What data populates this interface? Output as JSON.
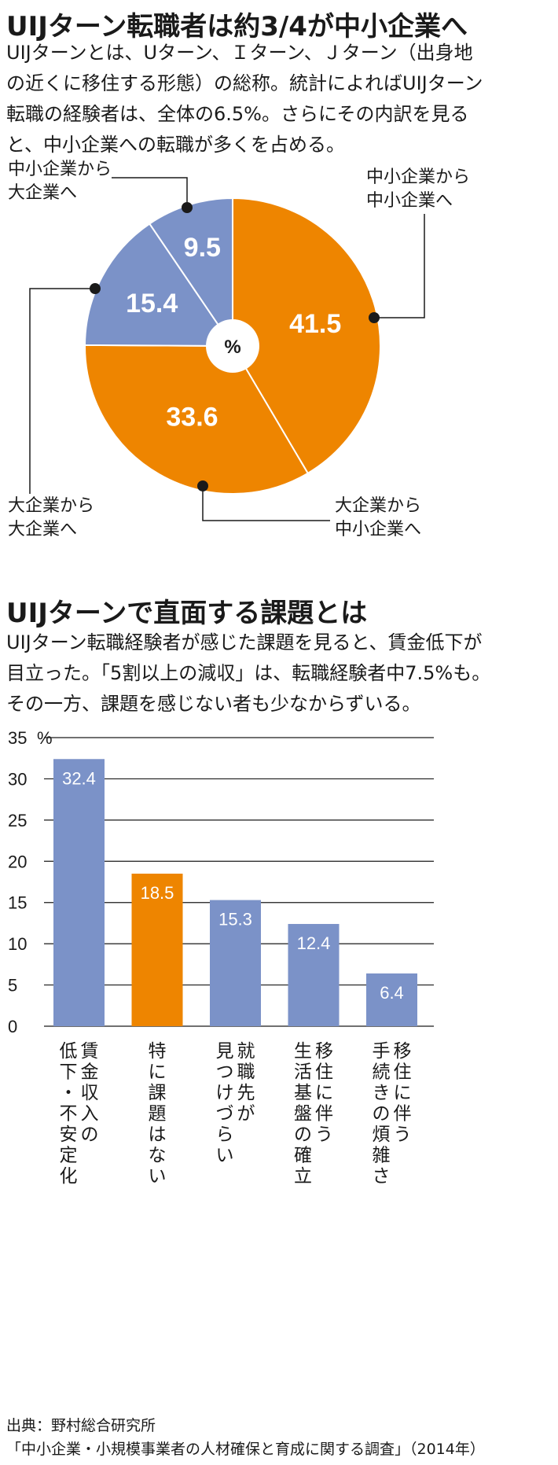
{
  "section1": {
    "title": "UIJターン転職者は約3/4が中小企業へ",
    "lead": [
      "UIJターンとは、Uターン、Ｉターン、Ｊターン（出身地",
      "の近くに移住する形態）の総称。統計によればUIJターン",
      "転職の経験者は、全体の6.5%。さらにその内訳を見る",
      "と、中小企業への転職が多くを占める。"
    ]
  },
  "section2": {
    "title": "UIJターンで直面する課題とは",
    "lead": [
      "UIJターン転職経験者が感じた課題を見ると、賃金低下が",
      "目立った。「5割以上の減収」は、転職経験者中7.5%も。",
      "その一方、課題を感じない者も少なからずいる。"
    ]
  },
  "chart_data": [
    {
      "type": "pie",
      "center_label": "%",
      "slices": [
        {
          "label_lines": [
            "中小企業から",
            "中小企業へ"
          ],
          "value": 41.5,
          "value_label": "41.5",
          "color": "#EE8500"
        },
        {
          "label_lines": [
            "大企業から",
            "中小企業へ"
          ],
          "value": 33.6,
          "value_label": "33.6",
          "color": "#EE8500"
        },
        {
          "label_lines": [
            "大企業から",
            "大企業へ"
          ],
          "value": 15.4,
          "value_label": "15.4",
          "color": "#7B92C8"
        },
        {
          "label_lines": [
            "中小企業から",
            "大企業へ"
          ],
          "value": 9.5,
          "value_label": "9.5",
          "color": "#7B92C8"
        }
      ]
    },
    {
      "type": "bar",
      "ylim": [
        0,
        35
      ],
      "yticks": [
        "0",
        "5",
        "10",
        "15",
        "20",
        "25",
        "30",
        "35"
      ],
      "yunit": "%",
      "grid": true,
      "bars": [
        {
          "category_lines": [
            "賃金収入の",
            "低下・不安定化"
          ],
          "value": 32.4,
          "value_label": "32.4",
          "color": "#7B92C8"
        },
        {
          "category_lines": [
            "特に課題はない"
          ],
          "value": 18.5,
          "value_label": "18.5",
          "color": "#EE8500"
        },
        {
          "category_lines": [
            "就職先が",
            "見つけづらい"
          ],
          "value": 15.3,
          "value_label": "15.3",
          "color": "#7B92C8"
        },
        {
          "category_lines": [
            "移住に伴う",
            "生活基盤の確立"
          ],
          "value": 12.4,
          "value_label": "12.4",
          "color": "#7B92C8"
        },
        {
          "category_lines": [
            "移住に伴う",
            "手続きの煩雑さ"
          ],
          "value": 6.4,
          "value_label": "6.4",
          "color": "#7B92C8"
        }
      ]
    }
  ],
  "source": {
    "line1": "出典：野村総合研究所",
    "line2": "「中小企業・小規模事業者の人材確保と育成に関する調査」（2014年）"
  }
}
